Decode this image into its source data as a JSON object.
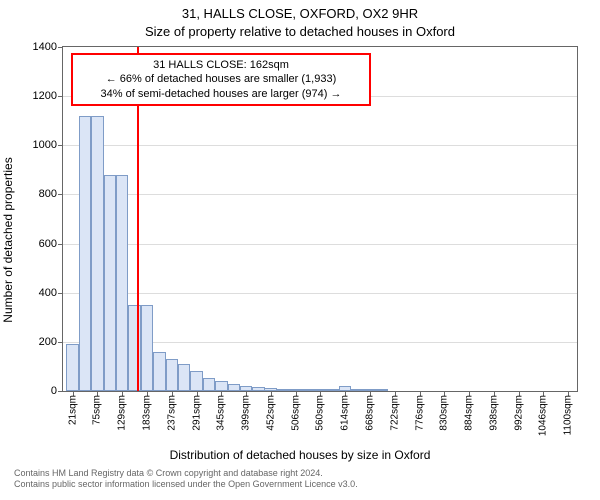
{
  "title_line1": "31, HALLS CLOSE, OXFORD, OX2 9HR",
  "title_line2": "Size of property relative to detached houses in Oxford",
  "y_axis_label": "Number of detached properties",
  "x_axis_label": "Distribution of detached houses by size in Oxford",
  "footer_line1": "Contains HM Land Registry data © Crown copyright and database right 2024.",
  "footer_line2": "Contains public sector information licensed under the Open Government Licence v3.0.",
  "chart": {
    "type": "histogram",
    "background_color": "#ffffff",
    "grid_color": "#dddddd",
    "axis_color": "#666666",
    "bar_fill": "#dbe5f6",
    "bar_stroke": "#7f9cc7",
    "marker_color": "#ff0000",
    "ylim": [
      0,
      1400
    ],
    "ytick_step": 200,
    "yticks": [
      0,
      200,
      400,
      600,
      800,
      1000,
      1200,
      1400
    ],
    "xlim": [
      0,
      1120
    ],
    "bar_width_units": 27,
    "x_tick_every": 54,
    "x_tick_start": 21,
    "x_tick_labels": [
      "21sqm",
      "75sqm",
      "129sqm",
      "183sqm",
      "237sqm",
      "291sqm",
      "345sqm",
      "399sqm",
      "452sqm",
      "506sqm",
      "560sqm",
      "614sqm",
      "668sqm",
      "722sqm",
      "776sqm",
      "830sqm",
      "884sqm",
      "938sqm",
      "992sqm",
      "1046sqm",
      "1100sqm"
    ],
    "bars": [
      {
        "x": 21,
        "y": 190
      },
      {
        "x": 48,
        "y": 1120
      },
      {
        "x": 75,
        "y": 1120
      },
      {
        "x": 102,
        "y": 880
      },
      {
        "x": 129,
        "y": 880
      },
      {
        "x": 156,
        "y": 350
      },
      {
        "x": 183,
        "y": 350
      },
      {
        "x": 210,
        "y": 160
      },
      {
        "x": 237,
        "y": 130
      },
      {
        "x": 264,
        "y": 110
      },
      {
        "x": 291,
        "y": 80
      },
      {
        "x": 318,
        "y": 55
      },
      {
        "x": 345,
        "y": 40
      },
      {
        "x": 372,
        "y": 30
      },
      {
        "x": 399,
        "y": 22
      },
      {
        "x": 426,
        "y": 18
      },
      {
        "x": 452,
        "y": 12
      },
      {
        "x": 479,
        "y": 8
      },
      {
        "x": 506,
        "y": 6
      },
      {
        "x": 533,
        "y": 4
      },
      {
        "x": 560,
        "y": 3
      },
      {
        "x": 587,
        "y": 6
      },
      {
        "x": 614,
        "y": 20
      },
      {
        "x": 641,
        "y": 2
      },
      {
        "x": 668,
        "y": 2
      },
      {
        "x": 695,
        "y": 1
      }
    ],
    "marker_x": 162,
    "annotation": {
      "line1": "31 HALLS CLOSE: 162sqm",
      "line2": "← 66% of detached houses are smaller (1,933)",
      "line3": "34% of semi-detached houses are larger (974) →"
    }
  },
  "fonts": {
    "title": 13,
    "axis_label": 12,
    "tick": 11,
    "xtick": 10,
    "annot": 11,
    "footer": 9
  }
}
